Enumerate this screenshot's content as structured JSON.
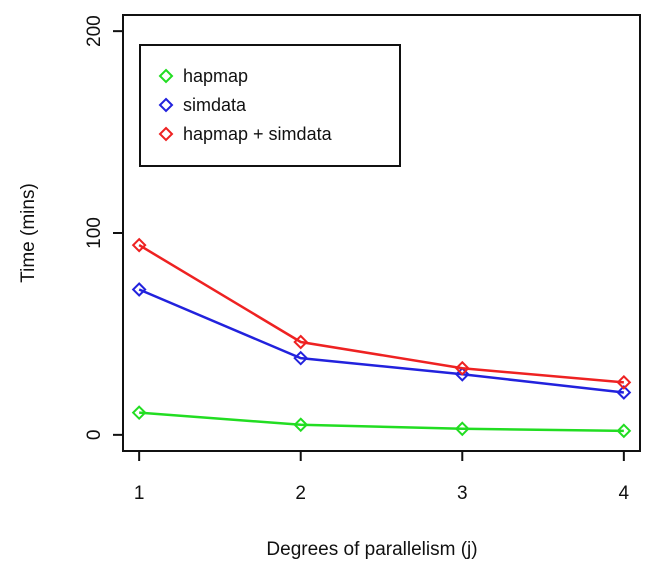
{
  "chart_data": {
    "type": "line",
    "title": "",
    "xlabel": "Degrees of parallelism (j)",
    "ylabel": "Time (mins)",
    "x": [
      1,
      2,
      3,
      4
    ],
    "xticks": [
      "1",
      "2",
      "3",
      "4"
    ],
    "yticks": [
      "0",
      "100",
      "200"
    ],
    "xlim": [
      0.9,
      4.1
    ],
    "ylim": [
      -8,
      208
    ],
    "grid": false,
    "legend_position": "top-left",
    "series": [
      {
        "name": "hapmap",
        "color": "#22dd22",
        "values": [
          11,
          5,
          3,
          2
        ]
      },
      {
        "name": "simdata",
        "color": "#2222dd",
        "values": [
          72,
          38,
          30,
          21
        ]
      },
      {
        "name": "hapmap + simdata",
        "color": "#ee2222",
        "values": [
          94,
          46,
          33,
          26
        ]
      }
    ]
  }
}
